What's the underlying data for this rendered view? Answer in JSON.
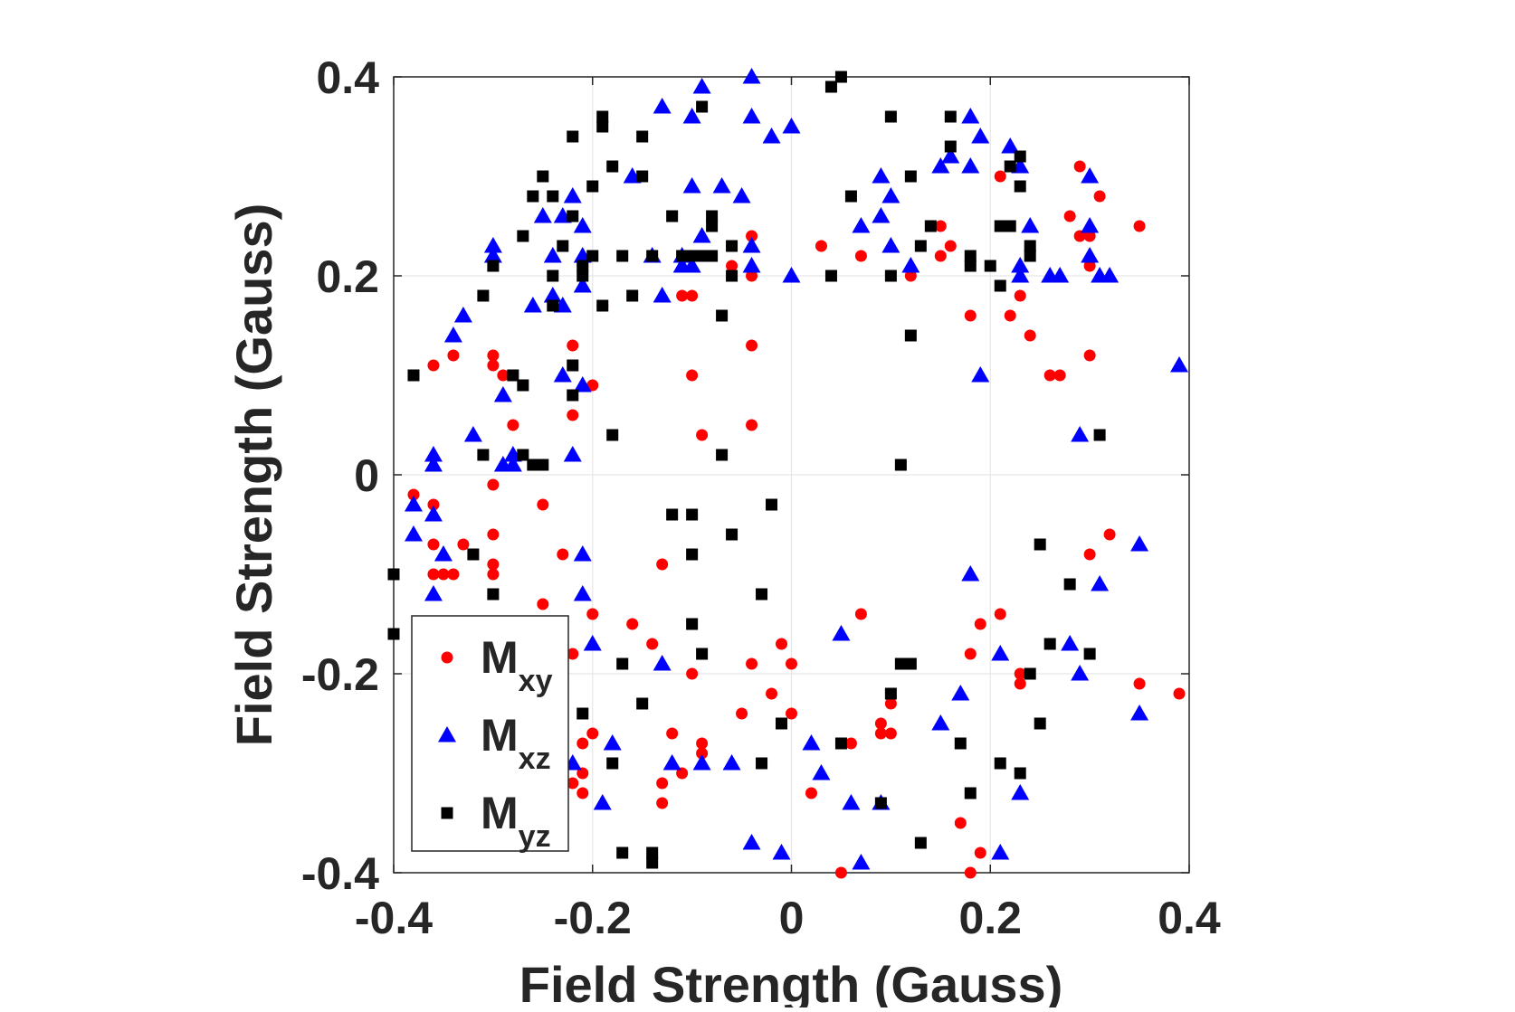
{
  "chart_data": {
    "type": "scatter",
    "xlabel": "Field Strength (Gauss)",
    "ylabel": "Field Strength (Gauss)",
    "xlim": [
      -0.4,
      0.4
    ],
    "ylim": [
      -0.4,
      0.4
    ],
    "xticks": [
      "-0.4",
      "-0.2",
      "0",
      "0.2",
      "0.4"
    ],
    "yticks": [
      "-0.4",
      "-0.2",
      "0",
      "0.2",
      "0.4"
    ],
    "grid": true,
    "legend_position": "bottom-left",
    "series": [
      {
        "name": "M",
        "sub": "xy",
        "marker": "circle",
        "color": "#ff0000",
        "points": [
          [
            -0.04,
            0.24
          ],
          [
            -0.04,
            0.2
          ],
          [
            -0.04,
            0.13
          ],
          [
            -0.04,
            0.05
          ],
          [
            -0.06,
            0.23
          ],
          [
            -0.06,
            0.21
          ],
          [
            -0.09,
            0.04
          ],
          [
            -0.1,
            0.1
          ],
          [
            -0.1,
            0.18
          ],
          [
            -0.11,
            0.18
          ],
          [
            -0.19,
            0.17
          ],
          [
            -0.2,
            0.09
          ],
          [
            -0.21,
            0.21
          ],
          [
            -0.22,
            0.13
          ],
          [
            -0.22,
            0.06
          ],
          [
            -0.28,
            0.05
          ],
          [
            -0.29,
            0.1
          ],
          [
            -0.3,
            0.12
          ],
          [
            -0.3,
            0.11
          ],
          [
            -0.3,
            -0.01
          ],
          [
            -0.3,
            -0.06
          ],
          [
            -0.3,
            -0.09
          ],
          [
            -0.3,
            -0.1
          ],
          [
            -0.25,
            -0.03
          ],
          [
            -0.23,
            -0.08
          ],
          [
            -0.25,
            -0.13
          ],
          [
            -0.22,
            -0.18
          ],
          [
            -0.21,
            -0.27
          ],
          [
            -0.21,
            -0.3
          ],
          [
            -0.21,
            -0.32
          ],
          [
            -0.22,
            -0.31
          ],
          [
            -0.2,
            -0.26
          ],
          [
            -0.2,
            -0.14
          ],
          [
            -0.16,
            -0.15
          ],
          [
            -0.14,
            -0.17
          ],
          [
            -0.13,
            -0.09
          ],
          [
            -0.12,
            -0.26
          ],
          [
            -0.11,
            -0.3
          ],
          [
            -0.13,
            -0.31
          ],
          [
            -0.13,
            -0.33
          ],
          [
            -0.1,
            -0.2
          ],
          [
            -0.09,
            -0.27
          ],
          [
            -0.09,
            -0.28
          ],
          [
            -0.05,
            -0.24
          ],
          [
            -0.04,
            -0.19
          ],
          [
            -0.02,
            -0.22
          ],
          [
            -0.01,
            -0.17
          ],
          [
            0,
            -0.19
          ],
          [
            0,
            -0.24
          ],
          [
            0.02,
            -0.32
          ],
          [
            0.05,
            -0.4
          ],
          [
            0.06,
            -0.27
          ],
          [
            0.07,
            -0.14
          ],
          [
            0.09,
            -0.25
          ],
          [
            0.09,
            -0.26
          ],
          [
            0.1,
            -0.26
          ],
          [
            0.1,
            -0.23
          ],
          [
            0.17,
            -0.35
          ],
          [
            0.18,
            -0.4
          ],
          [
            0.18,
            -0.18
          ],
          [
            0.19,
            -0.15
          ],
          [
            0.19,
            -0.38
          ],
          [
            0.21,
            -0.14
          ],
          [
            0.23,
            -0.2
          ],
          [
            0.23,
            -0.21
          ],
          [
            0.3,
            -0.08
          ],
          [
            0.32,
            -0.06
          ],
          [
            0.35,
            -0.21
          ],
          [
            0.39,
            -0.22
          ],
          [
            0.03,
            0.23
          ],
          [
            0.07,
            0.22
          ],
          [
            0.12,
            0.2
          ],
          [
            0.15,
            0.25
          ],
          [
            0.15,
            0.22
          ],
          [
            0.16,
            0.23
          ],
          [
            0.18,
            0.16
          ],
          [
            0.21,
            0.3
          ],
          [
            0.22,
            0.16
          ],
          [
            0.23,
            0.18
          ],
          [
            0.24,
            0.14
          ],
          [
            0.26,
            0.1
          ],
          [
            0.27,
            0.1
          ],
          [
            0.28,
            0.26
          ],
          [
            0.29,
            0.31
          ],
          [
            0.29,
            0.24
          ],
          [
            0.3,
            0.24
          ],
          [
            0.3,
            0.21
          ],
          [
            0.3,
            0.12
          ],
          [
            0.31,
            0.28
          ],
          [
            0.35,
            0.25
          ],
          [
            -0.38,
            -0.02
          ],
          [
            -0.36,
            -0.03
          ],
          [
            -0.36,
            -0.07
          ],
          [
            -0.36,
            -0.1
          ],
          [
            -0.35,
            -0.1
          ],
          [
            -0.34,
            -0.1
          ],
          [
            -0.33,
            -0.07
          ],
          [
            -0.36,
            0.11
          ],
          [
            -0.34,
            0.12
          ]
        ]
      },
      {
        "name": "M",
        "sub": "xz",
        "marker": "triangle",
        "color": "#0000ff",
        "points": [
          [
            -0.04,
            0.4
          ],
          [
            -0.09,
            0.39
          ],
          [
            -0.1,
            0.36
          ],
          [
            -0.13,
            0.37
          ],
          [
            -0.04,
            0.36
          ],
          [
            -0.02,
            0.34
          ],
          [
            0,
            0.35
          ],
          [
            -0.16,
            0.3
          ],
          [
            -0.1,
            0.29
          ],
          [
            -0.07,
            0.29
          ],
          [
            -0.05,
            0.28
          ],
          [
            -0.09,
            0.24
          ],
          [
            -0.04,
            0.23
          ],
          [
            -0.04,
            0.21
          ],
          [
            -0.11,
            0.21
          ],
          [
            -0.11,
            0.22
          ],
          [
            -0.1,
            0.21
          ],
          [
            -0.14,
            0.22
          ],
          [
            -0.13,
            0.18
          ],
          [
            0,
            0.2
          ],
          [
            -0.21,
            0.22
          ],
          [
            -0.22,
            0.28
          ],
          [
            -0.23,
            0.26
          ],
          [
            -0.25,
            0.26
          ],
          [
            -0.24,
            0.22
          ],
          [
            -0.21,
            0.25
          ],
          [
            -0.21,
            0.19
          ],
          [
            -0.23,
            0.17
          ],
          [
            -0.24,
            0.18
          ],
          [
            -0.26,
            0.17
          ],
          [
            -0.3,
            0.23
          ],
          [
            -0.3,
            0.22
          ],
          [
            -0.33,
            0.16
          ],
          [
            -0.34,
            0.14
          ],
          [
            -0.32,
            0.04
          ],
          [
            -0.29,
            0.08
          ],
          [
            -0.28,
            0.02
          ],
          [
            -0.29,
            0.01
          ],
          [
            -0.28,
            0.01
          ],
          [
            -0.36,
            0.02
          ],
          [
            -0.36,
            0.01
          ],
          [
            -0.23,
            0.1
          ],
          [
            -0.21,
            0.09
          ],
          [
            -0.22,
            0.02
          ],
          [
            -0.38,
            -0.03
          ],
          [
            -0.38,
            -0.06
          ],
          [
            -0.36,
            -0.04
          ],
          [
            -0.35,
            -0.08
          ],
          [
            -0.36,
            -0.12
          ],
          [
            -0.21,
            -0.08
          ],
          [
            -0.21,
            -0.12
          ],
          [
            -0.2,
            -0.17
          ],
          [
            -0.18,
            -0.27
          ],
          [
            -0.19,
            -0.33
          ],
          [
            -0.22,
            -0.29
          ],
          [
            -0.13,
            -0.19
          ],
          [
            -0.12,
            -0.29
          ],
          [
            -0.09,
            -0.29
          ],
          [
            -0.06,
            -0.29
          ],
          [
            -0.04,
            -0.37
          ],
          [
            -0.01,
            -0.38
          ],
          [
            0.02,
            -0.27
          ],
          [
            0.03,
            -0.3
          ],
          [
            0.05,
            -0.16
          ],
          [
            0.06,
            -0.33
          ],
          [
            0.07,
            -0.39
          ],
          [
            0.09,
            -0.33
          ],
          [
            0.15,
            -0.25
          ],
          [
            0.17,
            -0.22
          ],
          [
            0.18,
            -0.1
          ],
          [
            0.21,
            -0.18
          ],
          [
            0.21,
            -0.38
          ],
          [
            0.23,
            -0.32
          ],
          [
            0.28,
            -0.17
          ],
          [
            0.29,
            -0.2
          ],
          [
            0.31,
            -0.11
          ],
          [
            0.35,
            -0.07
          ],
          [
            0.35,
            -0.24
          ],
          [
            0.09,
            0.3
          ],
          [
            0.1,
            0.28
          ],
          [
            0.09,
            0.26
          ],
          [
            0.07,
            0.25
          ],
          [
            0.1,
            0.23
          ],
          [
            0.12,
            0.21
          ],
          [
            0.15,
            0.31
          ],
          [
            0.16,
            0.32
          ],
          [
            0.18,
            0.36
          ],
          [
            0.19,
            0.34
          ],
          [
            0.18,
            0.31
          ],
          [
            0.22,
            0.33
          ],
          [
            0.23,
            0.31
          ],
          [
            0.23,
            0.21
          ],
          [
            0.23,
            0.2
          ],
          [
            0.24,
            0.25
          ],
          [
            0.26,
            0.2
          ],
          [
            0.27,
            0.2
          ],
          [
            0.3,
            0.3
          ],
          [
            0.3,
            0.25
          ],
          [
            0.3,
            0.22
          ],
          [
            0.31,
            0.2
          ],
          [
            0.32,
            0.2
          ],
          [
            0.19,
            0.1
          ],
          [
            0.29,
            0.04
          ],
          [
            0.39,
            0.11
          ]
        ]
      },
      {
        "name": "M",
        "sub": "yz",
        "marker": "square",
        "color": "#000000",
        "points": [
          [
            0.05,
            0.4
          ],
          [
            0.04,
            0.39
          ],
          [
            -0.09,
            0.37
          ],
          [
            -0.19,
            0.36
          ],
          [
            -0.19,
            0.35
          ],
          [
            -0.15,
            0.34
          ],
          [
            -0.22,
            0.34
          ],
          [
            -0.18,
            0.31
          ],
          [
            -0.15,
            0.3
          ],
          [
            -0.2,
            0.29
          ],
          [
            -0.25,
            0.3
          ],
          [
            -0.26,
            0.28
          ],
          [
            -0.24,
            0.28
          ],
          [
            -0.22,
            0.26
          ],
          [
            -0.12,
            0.26
          ],
          [
            -0.08,
            0.26
          ],
          [
            -0.08,
            0.25
          ],
          [
            -0.27,
            0.24
          ],
          [
            -0.23,
            0.23
          ],
          [
            -0.21,
            0.21
          ],
          [
            -0.2,
            0.22
          ],
          [
            -0.17,
            0.22
          ],
          [
            -0.14,
            0.22
          ],
          [
            -0.11,
            0.22
          ],
          [
            -0.1,
            0.22
          ],
          [
            -0.09,
            0.22
          ],
          [
            -0.08,
            0.22
          ],
          [
            -0.06,
            0.23
          ],
          [
            -0.06,
            0.2
          ],
          [
            -0.21,
            0.2
          ],
          [
            -0.24,
            0.2
          ],
          [
            -0.19,
            0.17
          ],
          [
            -0.16,
            0.18
          ],
          [
            -0.24,
            0.17
          ],
          [
            -0.07,
            0.16
          ],
          [
            -0.31,
            0.18
          ],
          [
            -0.3,
            0.21
          ],
          [
            -0.38,
            0.1
          ],
          [
            -0.28,
            0.1
          ],
          [
            -0.27,
            0.09
          ],
          [
            -0.22,
            0.11
          ],
          [
            -0.22,
            0.08
          ],
          [
            -0.18,
            0.04
          ],
          [
            -0.07,
            0.02
          ],
          [
            -0.31,
            0.02
          ],
          [
            -0.27,
            0.02
          ],
          [
            -0.26,
            0.01
          ],
          [
            -0.25,
            0.01
          ],
          [
            -0.4,
            -0.1
          ],
          [
            -0.4,
            -0.16
          ],
          [
            -0.32,
            -0.08
          ],
          [
            -0.3,
            -0.12
          ],
          [
            -0.12,
            -0.04
          ],
          [
            -0.1,
            -0.04
          ],
          [
            -0.1,
            -0.08
          ],
          [
            -0.06,
            -0.06
          ],
          [
            -0.02,
            -0.03
          ],
          [
            -0.03,
            -0.12
          ],
          [
            -0.1,
            -0.15
          ],
          [
            -0.09,
            -0.18
          ],
          [
            -0.17,
            -0.19
          ],
          [
            -0.15,
            -0.23
          ],
          [
            -0.21,
            -0.24
          ],
          [
            -0.18,
            -0.29
          ],
          [
            -0.17,
            -0.38
          ],
          [
            -0.14,
            -0.38
          ],
          [
            -0.14,
            -0.39
          ],
          [
            -0.03,
            -0.29
          ],
          [
            -0.01,
            -0.25
          ],
          [
            0.05,
            -0.27
          ],
          [
            0.09,
            -0.33
          ],
          [
            0.1,
            -0.22
          ],
          [
            0.11,
            -0.19
          ],
          [
            0.12,
            -0.19
          ],
          [
            0.13,
            -0.37
          ],
          [
            0.17,
            -0.27
          ],
          [
            0.18,
            -0.32
          ],
          [
            0.21,
            -0.29
          ],
          [
            0.23,
            -0.3
          ],
          [
            0.24,
            -0.2
          ],
          [
            0.25,
            -0.25
          ],
          [
            0.25,
            -0.07
          ],
          [
            0.26,
            -0.17
          ],
          [
            0.28,
            -0.11
          ],
          [
            0.3,
            -0.18
          ],
          [
            0.31,
            0.04
          ],
          [
            0.11,
            0.01
          ],
          [
            0.12,
            0.14
          ],
          [
            0.04,
            0.2
          ],
          [
            0.1,
            0.2
          ],
          [
            0.06,
            0.28
          ],
          [
            0.1,
            0.36
          ],
          [
            0.12,
            0.3
          ],
          [
            0.13,
            0.23
          ],
          [
            0.14,
            0.25
          ],
          [
            0.16,
            0.33
          ],
          [
            0.16,
            0.36
          ],
          [
            0.18,
            0.22
          ],
          [
            0.18,
            0.21
          ],
          [
            0.2,
            0.21
          ],
          [
            0.21,
            0.25
          ],
          [
            0.22,
            0.25
          ],
          [
            0.22,
            0.31
          ],
          [
            0.23,
            0.32
          ],
          [
            0.23,
            0.29
          ],
          [
            0.24,
            0.23
          ],
          [
            0.24,
            0.22
          ],
          [
            0.21,
            0.19
          ]
        ]
      }
    ]
  }
}
